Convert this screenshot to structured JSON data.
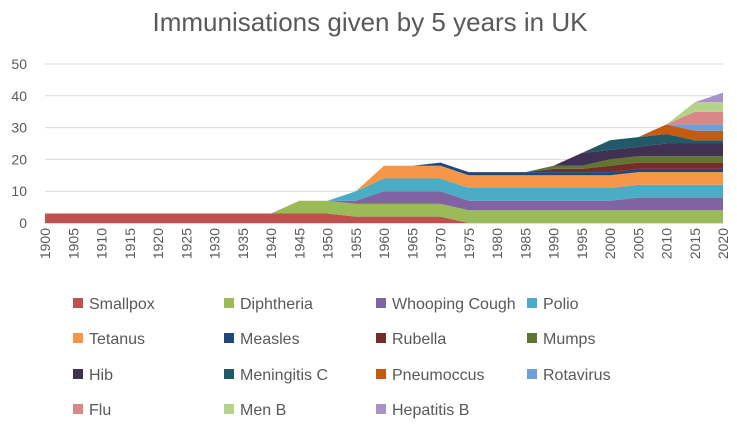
{
  "chart_data": {
    "type": "area",
    "stacked": true,
    "title": "Immunisations given by 5 years in UK",
    "xlabel": "",
    "ylabel": "",
    "x": [
      1900,
      1905,
      1910,
      1915,
      1920,
      1925,
      1930,
      1935,
      1940,
      1945,
      1950,
      1955,
      1960,
      1965,
      1970,
      1975,
      1980,
      1985,
      1990,
      1995,
      2000,
      2005,
      2010,
      2015,
      2020
    ],
    "ylim": [
      0,
      50
    ],
    "yticks": [
      0,
      10,
      20,
      30,
      40,
      50
    ],
    "legend_position": "bottom",
    "series": [
      {
        "name": "Smallpox",
        "color": "#c0504d",
        "values": [
          3,
          3,
          3,
          3,
          3,
          3,
          3,
          3,
          3,
          3,
          3,
          2,
          2,
          2,
          2,
          0,
          0,
          0,
          0,
          0,
          0,
          0,
          0,
          0,
          0
        ]
      },
      {
        "name": "Diphtheria",
        "color": "#9bbb59",
        "values": [
          0,
          0,
          0,
          0,
          0,
          0,
          0,
          0,
          0,
          4,
          4,
          4,
          4,
          4,
          4,
          4,
          4,
          4,
          4,
          4,
          4,
          4,
          4,
          4,
          4
        ]
      },
      {
        "name": "Whooping Cough",
        "color": "#8064a2",
        "values": [
          0,
          0,
          0,
          0,
          0,
          0,
          0,
          0,
          0,
          0,
          0,
          1,
          4,
          4,
          4,
          3,
          3,
          3,
          3,
          3,
          3,
          4,
          4,
          4,
          4
        ]
      },
      {
        "name": "Polio",
        "color": "#4bacc6",
        "values": [
          0,
          0,
          0,
          0,
          0,
          0,
          0,
          0,
          0,
          0,
          0,
          3,
          4,
          4,
          4,
          4,
          4,
          4,
          4,
          4,
          4,
          4,
          4,
          4,
          4
        ]
      },
      {
        "name": "Tetanus",
        "color": "#f79646",
        "values": [
          0,
          0,
          0,
          0,
          0,
          0,
          0,
          0,
          0,
          0,
          0,
          0,
          4,
          4,
          4,
          4,
          4,
          4,
          4,
          4,
          4,
          4,
          4,
          4,
          4
        ]
      },
      {
        "name": "Measles",
        "color": "#1f497d",
        "values": [
          0,
          0,
          0,
          0,
          0,
          0,
          0,
          0,
          0,
          0,
          0,
          0,
          0,
          0,
          1,
          1,
          1,
          1,
          1,
          1,
          1,
          1,
          1,
          1,
          1
        ]
      },
      {
        "name": "Rubella",
        "color": "#772c2a",
        "values": [
          0,
          0,
          0,
          0,
          0,
          0,
          0,
          0,
          0,
          0,
          0,
          0,
          0,
          0,
          0,
          0,
          0,
          0,
          1,
          1,
          2,
          2,
          2,
          2,
          2
        ]
      },
      {
        "name": "Mumps",
        "color": "#5f7530",
        "values": [
          0,
          0,
          0,
          0,
          0,
          0,
          0,
          0,
          0,
          0,
          0,
          0,
          0,
          0,
          0,
          0,
          0,
          0,
          1,
          1,
          2,
          2,
          2,
          2,
          2
        ]
      },
      {
        "name": "Hib",
        "color": "#403152",
        "values": [
          0,
          0,
          0,
          0,
          0,
          0,
          0,
          0,
          0,
          0,
          0,
          0,
          0,
          0,
          0,
          0,
          0,
          0,
          0,
          4,
          3,
          3,
          4,
          4,
          4
        ]
      },
      {
        "name": "Meningitis C",
        "color": "#215968",
        "values": [
          0,
          0,
          0,
          0,
          0,
          0,
          0,
          0,
          0,
          0,
          0,
          0,
          0,
          0,
          0,
          0,
          0,
          0,
          0,
          0,
          3,
          3,
          3,
          1,
          1
        ]
      },
      {
        "name": "Pneumoccus",
        "color": "#c55a11",
        "values": [
          0,
          0,
          0,
          0,
          0,
          0,
          0,
          0,
          0,
          0,
          0,
          0,
          0,
          0,
          0,
          0,
          0,
          0,
          0,
          0,
          0,
          0,
          3,
          3,
          3
        ]
      },
      {
        "name": "Rotavirus",
        "color": "#6f9fd8",
        "values": [
          0,
          0,
          0,
          0,
          0,
          0,
          0,
          0,
          0,
          0,
          0,
          0,
          0,
          0,
          0,
          0,
          0,
          0,
          0,
          0,
          0,
          0,
          0,
          2,
          2
        ]
      },
      {
        "name": "Flu",
        "color": "#d98787",
        "values": [
          0,
          0,
          0,
          0,
          0,
          0,
          0,
          0,
          0,
          0,
          0,
          0,
          0,
          0,
          0,
          0,
          0,
          0,
          0,
          0,
          0,
          0,
          0,
          4,
          4
        ]
      },
      {
        "name": "Men B",
        "color": "#b5d48a",
        "values": [
          0,
          0,
          0,
          0,
          0,
          0,
          0,
          0,
          0,
          0,
          0,
          0,
          0,
          0,
          0,
          0,
          0,
          0,
          0,
          0,
          0,
          0,
          0,
          3,
          3
        ]
      },
      {
        "name": "Hepatitis B",
        "color": "#a992c8",
        "values": [
          0,
          0,
          0,
          0,
          0,
          0,
          0,
          0,
          0,
          0,
          0,
          0,
          0,
          0,
          0,
          0,
          0,
          0,
          0,
          0,
          0,
          0,
          0,
          0,
          3
        ]
      }
    ]
  }
}
